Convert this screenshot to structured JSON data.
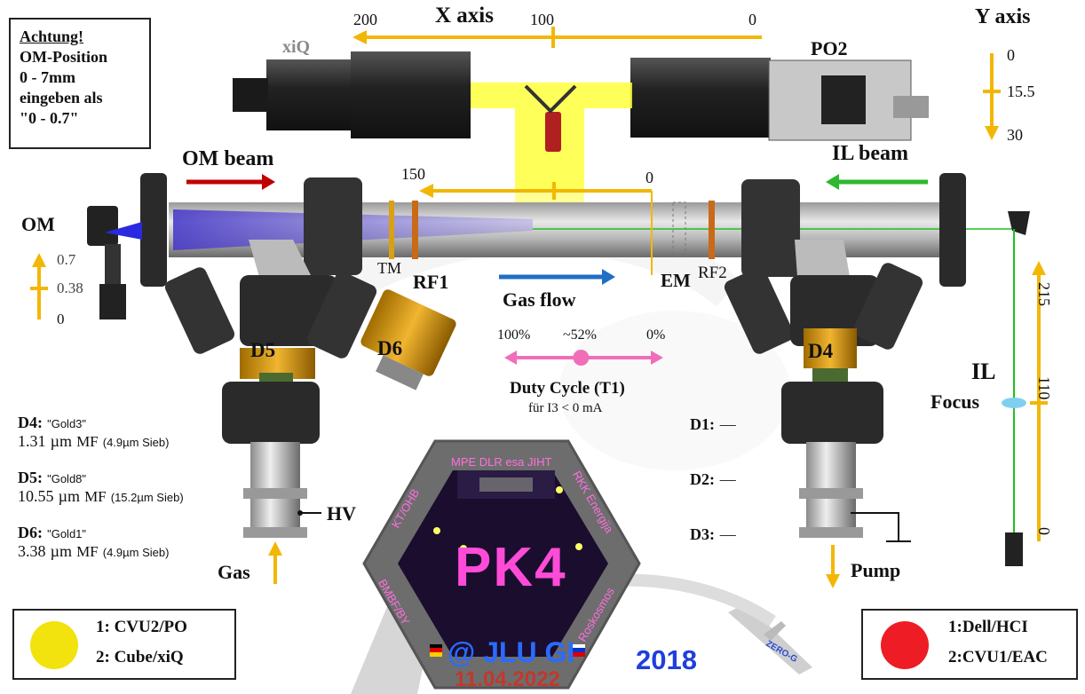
{
  "note": {
    "title": "Achtung!",
    "lines": [
      "OM-Position",
      "0 - 7mm",
      "eingeben als",
      "\"0 - 0.7\""
    ]
  },
  "x_axis": {
    "title": "X axis",
    "ticks": [
      "200",
      "100",
      "0"
    ]
  },
  "y_axis": {
    "title": "Y axis",
    "ticks": [
      "0",
      "15.5",
      "30"
    ]
  },
  "cameras": {
    "left": "xiQ",
    "right": "PO2"
  },
  "beams": {
    "om": "OM beam",
    "il": "IL beam"
  },
  "chamber_scale": {
    "left": "150",
    "right": "0"
  },
  "om_label": "OM",
  "om_scale": [
    "0.7",
    "0.38",
    "0"
  ],
  "electrodes": {
    "tm": "TM",
    "rf1": "RF1",
    "em": "EM",
    "rf2": "RF2"
  },
  "gas_flow": "Gas flow",
  "duty_cycle": {
    "left": "100%",
    "mid": "~52%",
    "right": "0%",
    "title": "Duty Cycle (T1)",
    "subtitle": "für I3 < 0 mA",
    "value_percent": 52
  },
  "dispensers": {
    "d4": "D4",
    "d5": "D5",
    "d6": "D6"
  },
  "particles": [
    {
      "id": "D4:",
      "name": "\"Gold3\"",
      "size": "1.31",
      "unit": "µm",
      "type": "MF",
      "sieve": "(4.9µm Sieb)"
    },
    {
      "id": "D5:",
      "name": "\"Gold8\"",
      "size": "10.55",
      "unit": "µm",
      "type": "MF",
      "sieve": "(15.2µm Sieb)"
    },
    {
      "id": "D6:",
      "name": "\"Gold1\"",
      "size": "3.38",
      "unit": "µm",
      "type": "MF",
      "sieve": "(4.9µm Sieb)"
    }
  ],
  "d_status": [
    {
      "id": "D1:",
      "value": "—"
    },
    {
      "id": "D2:",
      "value": "—"
    },
    {
      "id": "D3:",
      "value": "—"
    }
  ],
  "hv": "HV",
  "gas": "Gas",
  "pump": "Pump",
  "il": {
    "title": "IL",
    "focus": "Focus",
    "scale": [
      "215",
      "110",
      "0"
    ]
  },
  "logo": {
    "partners_top": "MPE DLR esa JIHT",
    "partners_left": "KT/OHB",
    "partners_right": "RKK Energija",
    "partners_bottom_left": "BMBF/BY",
    "partners_bottom_right": "Roskosmos",
    "name": "PK4",
    "event": "@ JLU GI",
    "date": "11.04.2022",
    "plane_text": "ZERO-G"
  },
  "year": "2018",
  "legend_left": {
    "color": "#f2e20e",
    "line1": "1: CVU2/PO",
    "line2": "2: Cube/xiQ"
  },
  "legend_right": {
    "color": "#ee1c24",
    "line1": "1:Dell/HCI",
    "line2": "2:CVU1/EAC"
  },
  "colors": {
    "yellow_arrow": "#f2b705",
    "om_beam_arrow": "#c00000",
    "il_beam_arrow": "#2eb82e",
    "gas_flow_arrow": "#1f6fc5",
    "duty_cycle": "#f06eb9",
    "il_laser": "#22c022"
  }
}
